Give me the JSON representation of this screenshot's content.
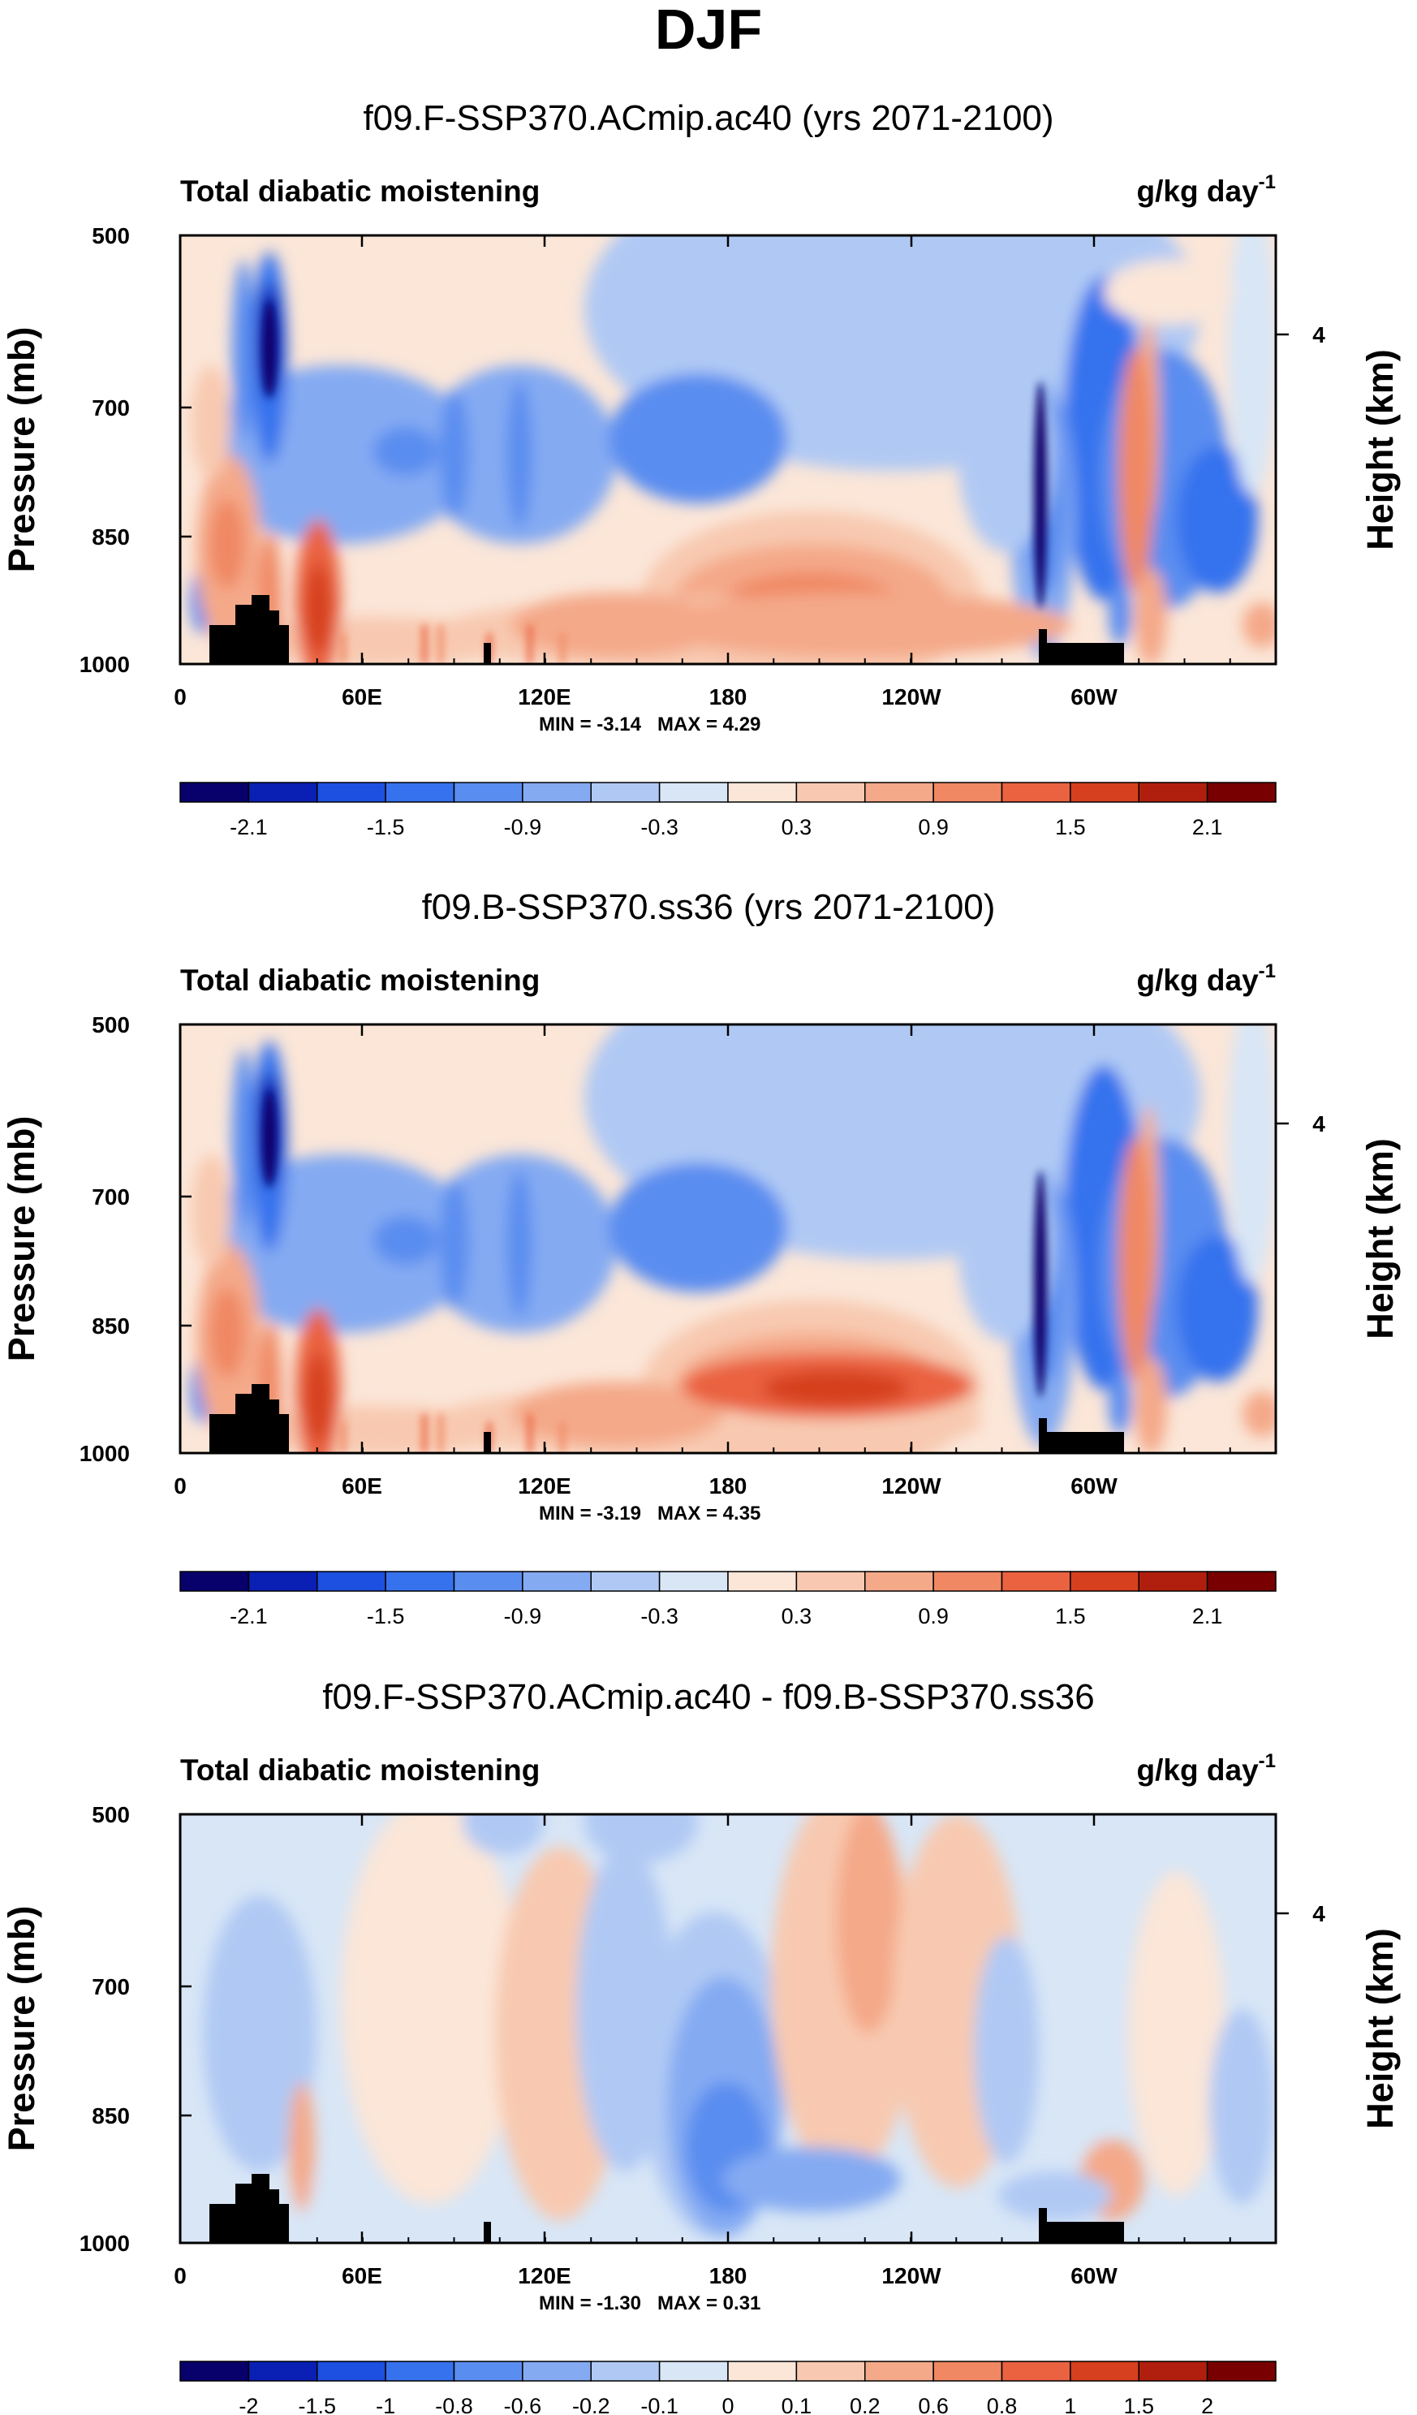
{
  "title": "DJF",
  "chart_data": [
    {
      "type": "heatmap",
      "title": "f09.F-SSP370.ACmip.ac40 (yrs 2071-2100)",
      "left_label": "Total diabatic moistening",
      "right_label": "g/kg day",
      "right_label_sup": "-1",
      "ylabel": "Pressure (mb)",
      "y2label": "Height (km)",
      "x_ticks": [
        "0",
        "60E",
        "120E",
        "180",
        "120W",
        "60W"
      ],
      "y_ticks": [
        "500",
        "700",
        "850",
        "1000"
      ],
      "y2_ticks": [
        "4"
      ],
      "min_text": "MIN = -3.14",
      "max_text": "MAX = 4.29",
      "min": -3.14,
      "max": 4.29,
      "colorbar_labels": [
        "-2.1",
        "-1.5",
        "-0.9",
        "-0.3",
        "0.3",
        "0.9",
        "1.5",
        "2.1"
      ]
    },
    {
      "type": "heatmap",
      "title": "f09.B-SSP370.ss36 (yrs 2071-2100)",
      "left_label": "Total diabatic moistening",
      "right_label": "g/kg day",
      "right_label_sup": "-1",
      "ylabel": "Pressure (mb)",
      "y2label": "Height (km)",
      "x_ticks": [
        "0",
        "60E",
        "120E",
        "180",
        "120W",
        "60W"
      ],
      "y_ticks": [
        "500",
        "700",
        "850",
        "1000"
      ],
      "y2_ticks": [
        "4"
      ],
      "min_text": "MIN = -3.19",
      "max_text": "MAX = 4.35",
      "min": -3.19,
      "max": 4.35,
      "colorbar_labels": [
        "-2.1",
        "-1.5",
        "-0.9",
        "-0.3",
        "0.3",
        "0.9",
        "1.5",
        "2.1"
      ]
    },
    {
      "type": "heatmap",
      "title": "f09.F-SSP370.ACmip.ac40 - f09.B-SSP370.ss36",
      "left_label": "Total diabatic moistening",
      "right_label": "g/kg day",
      "right_label_sup": "-1",
      "ylabel": "Pressure (mb)",
      "y2label": "Height (km)",
      "x_ticks": [
        "0",
        "60E",
        "120E",
        "180",
        "120W",
        "60W"
      ],
      "y_ticks": [
        "500",
        "700",
        "850",
        "1000"
      ],
      "y2_ticks": [
        "4"
      ],
      "min_text": "MIN = -1.30",
      "max_text": "MAX = 0.31",
      "min": -1.3,
      "max": 0.31,
      "colorbar_labels": [
        "-2",
        "-1.5",
        "-1",
        "-0.8",
        "-0.6",
        "-0.2",
        "-0.1",
        "0",
        "0.1",
        "0.2",
        "0.6",
        "0.8",
        "1",
        "1.5",
        "2"
      ]
    }
  ],
  "palette": [
    "#08006b",
    "#0a1fb3",
    "#1d4fe0",
    "#3672ee",
    "#5a8df0",
    "#84aaf2",
    "#b0c9f4",
    "#d8e6f6",
    "#fbe6d8",
    "#f8c9b0",
    "#f4a989",
    "#f08863",
    "#ea6240",
    "#d6401f",
    "#b01f0d",
    "#780000"
  ],
  "land_color": "#000000"
}
